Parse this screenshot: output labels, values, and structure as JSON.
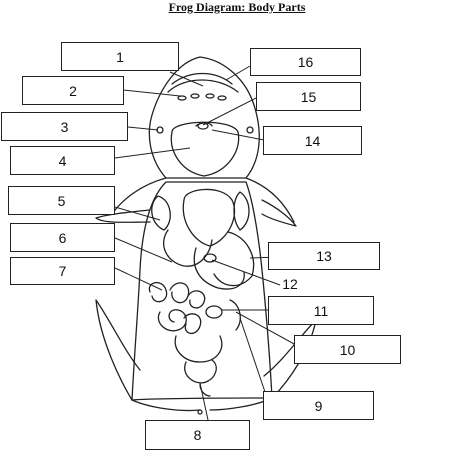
{
  "title": "Frog Diagram: Body Parts",
  "labels": [
    "1",
    "2",
    "3",
    "4",
    "5",
    "6",
    "7",
    "8",
    "9",
    "10",
    "11",
    "12",
    "13",
    "14",
    "15",
    "16"
  ]
}
